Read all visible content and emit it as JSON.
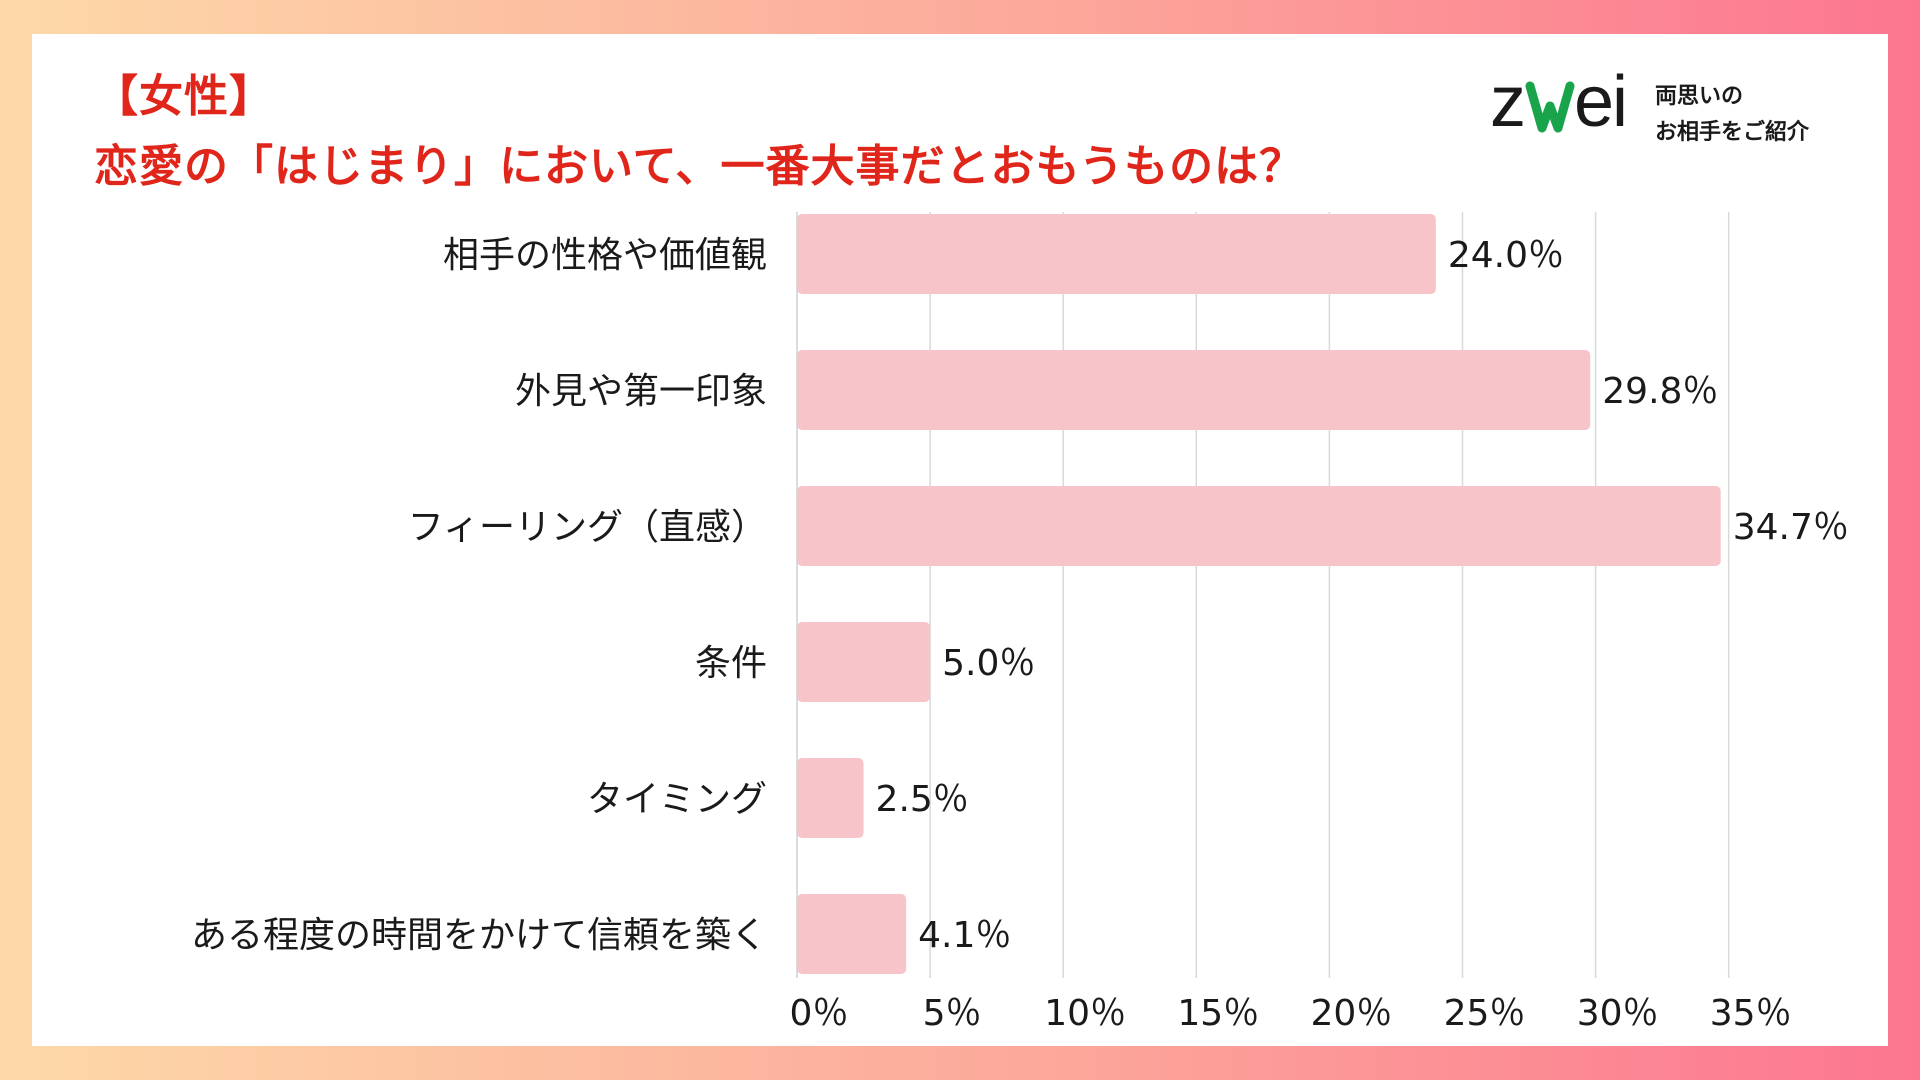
{
  "title": {
    "line1": "【女性】",
    "line2": "恋愛の「はじまり」において、一番大事だとおもうものは？"
  },
  "logo": {
    "wordmark": "ZWEI",
    "tagline_line1": "両思いの",
    "tagline_line2": "お相手をご紹介"
  },
  "colors": {
    "title": "#e0251b",
    "bar": "#f7c5c9",
    "logo_heart": "#19a34a",
    "grid": "#d9d9d9"
  },
  "chart_data": {
    "type": "bar",
    "orientation": "horizontal",
    "categories": [
      "相手の性格や価値観",
      "外見や第一印象",
      "フィーリング（直感）",
      "条件",
      "タイミング",
      "ある程度の時間をかけて信頼を築く"
    ],
    "values": [
      24.0,
      29.8,
      34.7,
      5.0,
      2.5,
      4.1
    ],
    "value_labels": [
      "24.0％",
      "29.8％",
      "34.7％",
      "5.0％",
      "2.5％",
      "4.1％"
    ],
    "xlim": [
      0,
      35
    ],
    "x_ticks": [
      0,
      5,
      10,
      15,
      20,
      25,
      30,
      35
    ],
    "x_tick_labels": [
      "0％",
      "5％",
      "10％",
      "15％",
      "20％",
      "25％",
      "30％",
      "35％"
    ],
    "grid": true,
    "legend": "none"
  }
}
